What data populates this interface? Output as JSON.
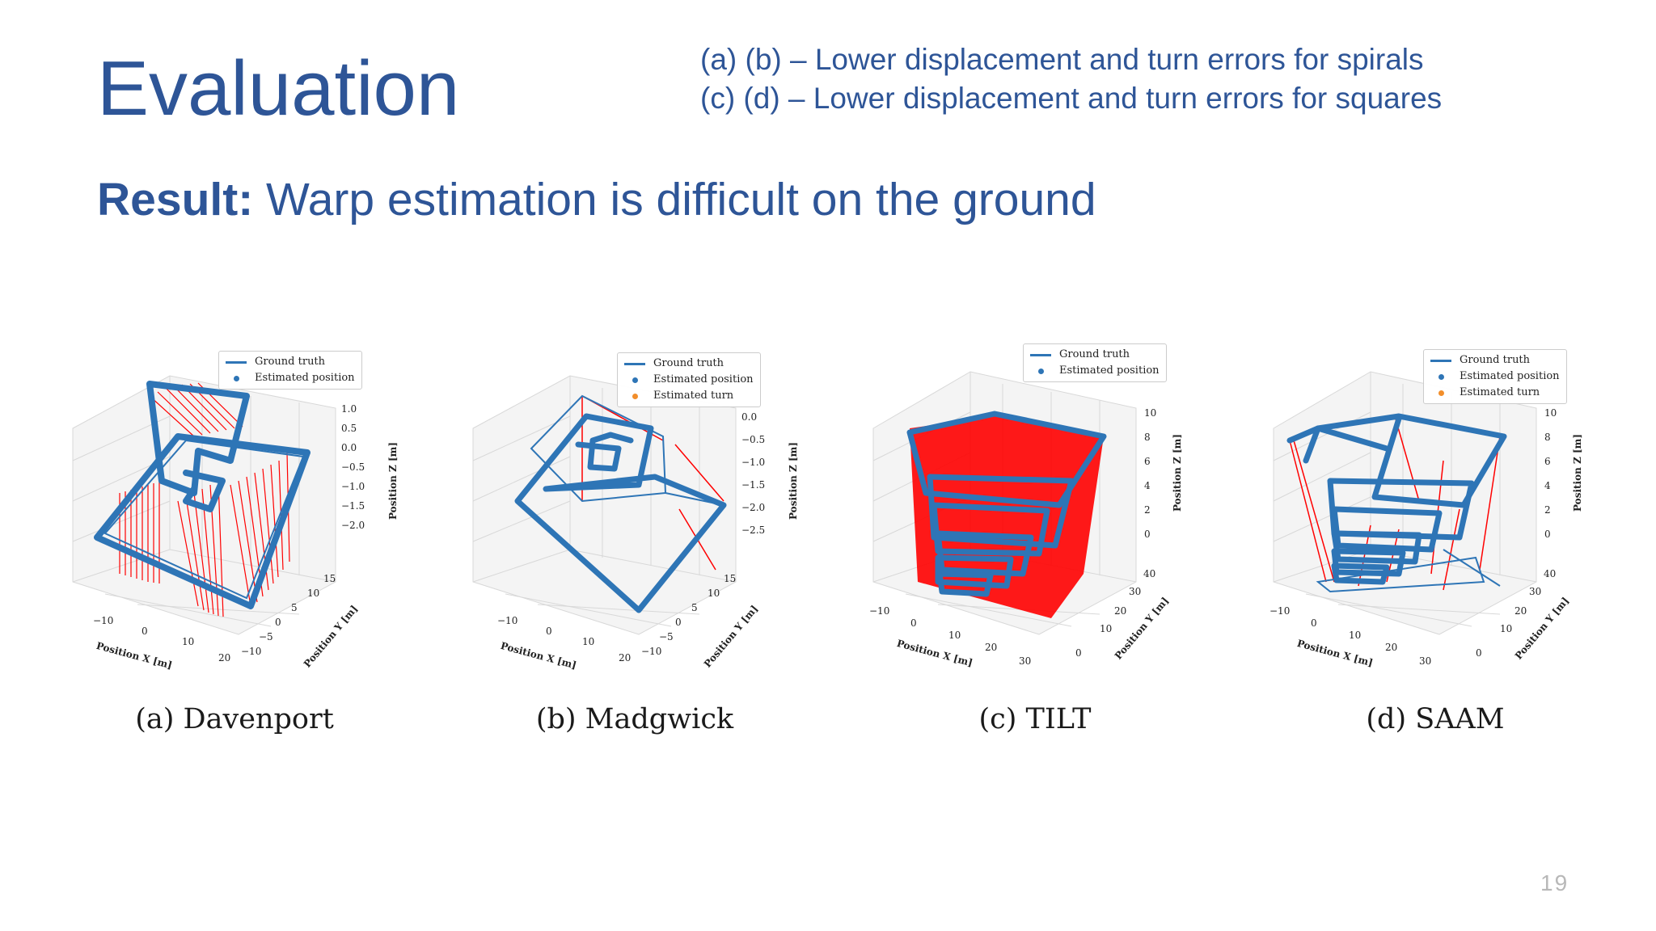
{
  "slide": {
    "title": "Evaluation",
    "notes": [
      "(a) (b) – Lower displacement and turn errors for spirals",
      "(c) (d) – Lower displacement and turn errors for squares"
    ],
    "result_label": "Result:",
    "result_text": " Warp estimation is difficult on the ground",
    "page_number": "19"
  },
  "colors": {
    "text_blue": "#2e5597",
    "trajectory_blue": "#2e75b6",
    "error_red": "#ff0000",
    "turn_orange": "#f28e2b"
  },
  "figures": [
    {
      "caption": "(a) Davenport",
      "legend": [
        "Ground truth",
        "Estimated position"
      ],
      "x_axis_label": "Position X [m]",
      "x_ticks": [
        "−10",
        "0",
        "10",
        "20"
      ],
      "y_axis_label": "Position Y [m]",
      "y_ticks": [
        "−10",
        "−5",
        "0",
        "5",
        "10",
        "15"
      ],
      "z_axis_label": "Position Z [m]",
      "z_ticks": [
        "1.0",
        "0.5",
        "0.0",
        "−0.5",
        "−1.0",
        "−1.5",
        "−2.0"
      ]
    },
    {
      "caption": "(b) Madgwick",
      "legend": [
        "Ground truth",
        "Estimated position",
        "Estimated turn"
      ],
      "x_axis_label": "Position X [m]",
      "x_ticks": [
        "−10",
        "0",
        "10",
        "20"
      ],
      "y_axis_label": "Position Y [m]",
      "y_ticks": [
        "−10",
        "−5",
        "0",
        "5",
        "10",
        "15"
      ],
      "z_axis_label": "Position Z [m]",
      "z_ticks": [
        "0.0",
        "−0.5",
        "−1.0",
        "−1.5",
        "−2.0",
        "−2.5"
      ]
    },
    {
      "caption": "(c) TILT",
      "legend": [
        "Ground truth",
        "Estimated position"
      ],
      "x_axis_label": "Position X [m]",
      "x_ticks": [
        "−10",
        "0",
        "10",
        "20",
        "30"
      ],
      "y_axis_label": "Position Y [m]",
      "y_ticks": [
        "0",
        "10",
        "20",
        "30",
        "40"
      ],
      "z_axis_label": "Position Z [m]",
      "z_ticks": [
        "10",
        "8",
        "6",
        "4",
        "2",
        "0"
      ]
    },
    {
      "caption": "(d) SAAM",
      "legend": [
        "Ground truth",
        "Estimated position",
        "Estimated turn"
      ],
      "x_axis_label": "Position X [m]",
      "x_ticks": [
        "−10",
        "0",
        "10",
        "20",
        "30"
      ],
      "y_axis_label": "Position Y [m]",
      "y_ticks": [
        "0",
        "10",
        "20",
        "30",
        "40"
      ],
      "z_axis_label": "Position Z [m]",
      "z_ticks": [
        "10",
        "8",
        "6",
        "4",
        "2",
        "0"
      ]
    }
  ]
}
